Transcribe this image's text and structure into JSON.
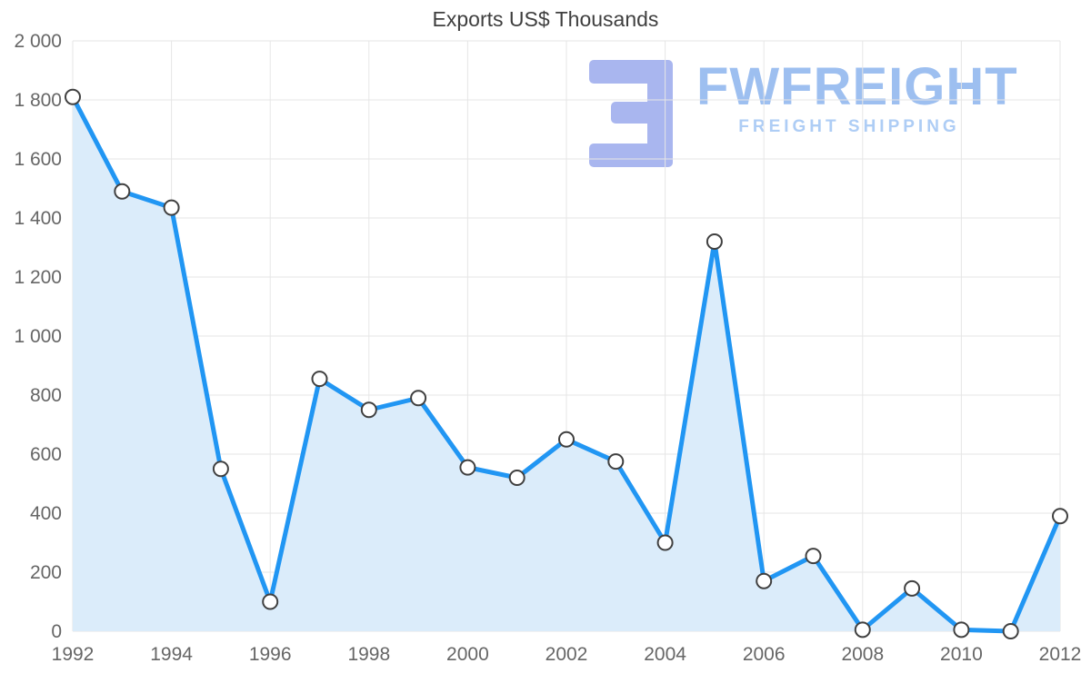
{
  "chart_data": {
    "type": "area",
    "title": "Exports US$ Thousands",
    "x": [
      1992,
      1993,
      1994,
      1995,
      1996,
      1997,
      1998,
      1999,
      2000,
      2001,
      2002,
      2003,
      2004,
      2005,
      2006,
      2007,
      2008,
      2009,
      2010,
      2011,
      2012
    ],
    "values": [
      1810,
      1490,
      1435,
      550,
      100,
      855,
      750,
      790,
      555,
      520,
      650,
      575,
      300,
      1320,
      170,
      255,
      5,
      145,
      5,
      0,
      390
    ],
    "x_tick_labels": [
      "1992",
      "1994",
      "1996",
      "1998",
      "2000",
      "2002",
      "2004",
      "2006",
      "2008",
      "2010",
      "2012"
    ],
    "y_ticks": [
      0,
      200,
      400,
      600,
      800,
      1000,
      1200,
      1400,
      1600,
      1800,
      2000
    ],
    "y_tick_labels": [
      "0",
      "200",
      "400",
      "600",
      "800",
      "1 000",
      "1 200",
      "1 400",
      "1 600",
      "1 800",
      "2 000"
    ],
    "ylim": [
      0,
      2000
    ],
    "grid": true,
    "legend": "none",
    "line_color": "#2196f3",
    "area_color": "#dbecfa",
    "marker_fill": "#ffffff",
    "marker_stroke": "#404040",
    "grid_color": "#e6e6e6",
    "tick_label_color": "#666666"
  },
  "watermark": {
    "name": "FWFREIGHT",
    "tagline": "FREIGHT SHIPPING",
    "icon_color": "#a9b6ef",
    "name_color": "#9dbff0",
    "tagline_color": "#aecdf5"
  }
}
